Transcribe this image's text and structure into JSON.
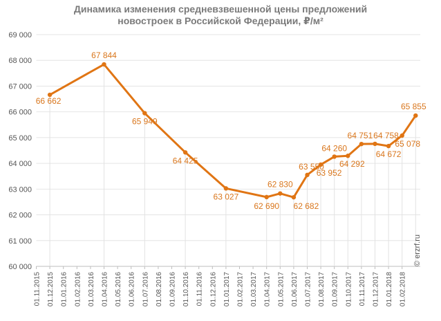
{
  "title_lines": [
    "Динамика изменения средневзвешенной цены предложений",
    "новостроек в Российской Федерации, ₽/м²"
  ],
  "watermark": "© erzrf.ru",
  "colors": {
    "line": "#e07514",
    "label": "#d9761c",
    "grid": "#e4e4e4",
    "axis_text": "#555555",
    "title": "#7a7a7a"
  },
  "chart_data": {
    "type": "line",
    "title": "Динамика изменения средневзвешенной цены предложений новостроек в Российской Федерации, ₽/м²",
    "xlabel": "",
    "ylabel": "",
    "ylim": [
      60000,
      69000
    ],
    "y_ticks": [
      "60 000",
      "61 000",
      "62 000",
      "63 000",
      "64 000",
      "65 000",
      "66 000",
      "67 000",
      "68 000",
      "69 000"
    ],
    "y_tick_values": [
      60000,
      61000,
      62000,
      63000,
      64000,
      65000,
      66000,
      67000,
      68000,
      69000
    ],
    "grid": "horizontal",
    "categories": [
      "01.11.2015",
      "01.12.2015",
      "01.01.2016",
      "01.02.2016",
      "01.03.2016",
      "01.04.2016",
      "01.05.2016",
      "01.06.2016",
      "01.07.2016",
      "01.08.2016",
      "01.09.2016",
      "01.10.2016",
      "01.11.2016",
      "01.12.2016",
      "01.01.2017",
      "01.02.2017",
      "01.03.2017",
      "01.04.2017",
      "01.05.2017",
      "01.06.2017",
      "01.07.2017",
      "01.08.2017",
      "01.09.2017",
      "01.10.2017",
      "01.11.2017",
      "01.12.2017",
      "01.01.2018",
      "01.02.2018"
    ],
    "points": [
      {
        "x": "01.12.2015",
        "y": 66662,
        "label": "66 662"
      },
      {
        "x": "01.04.2016",
        "y": 67844,
        "label": "67 844"
      },
      {
        "x": "01.07.2016",
        "y": 65949,
        "label": "65 949"
      },
      {
        "x": "01.10.2016",
        "y": 64425,
        "label": "64 425"
      },
      {
        "x": "01.01.2017",
        "y": 63027,
        "label": "63 027"
      },
      {
        "x": "01.04.2017",
        "y": 62690,
        "label": "62 690"
      },
      {
        "x": "01.05.2017",
        "y": 62830,
        "label": "62 830"
      },
      {
        "x": "01.06.2017",
        "y": 62682,
        "label": "62 682"
      },
      {
        "x": "01.07.2017",
        "y": 63550,
        "label": "63 550"
      },
      {
        "x": "01.08.2017",
        "y": 63952,
        "label": "63 952"
      },
      {
        "x": "01.09.2017",
        "y": 64260,
        "label": "64 260"
      },
      {
        "x": "01.10.2017",
        "y": 64292,
        "label": "64 292"
      },
      {
        "x": "01.11.2017",
        "y": 64751,
        "label": "64 751"
      },
      {
        "x": "01.12.2017",
        "y": 64758,
        "label": "64 758"
      },
      {
        "x": "01.01.2018",
        "y": 64672,
        "label": "64 672"
      },
      {
        "x": "01.02.2018",
        "y": 65078,
        "label": "65 078"
      },
      {
        "x": "01.03.2018",
        "y": 65855,
        "label": "65 855"
      }
    ]
  }
}
